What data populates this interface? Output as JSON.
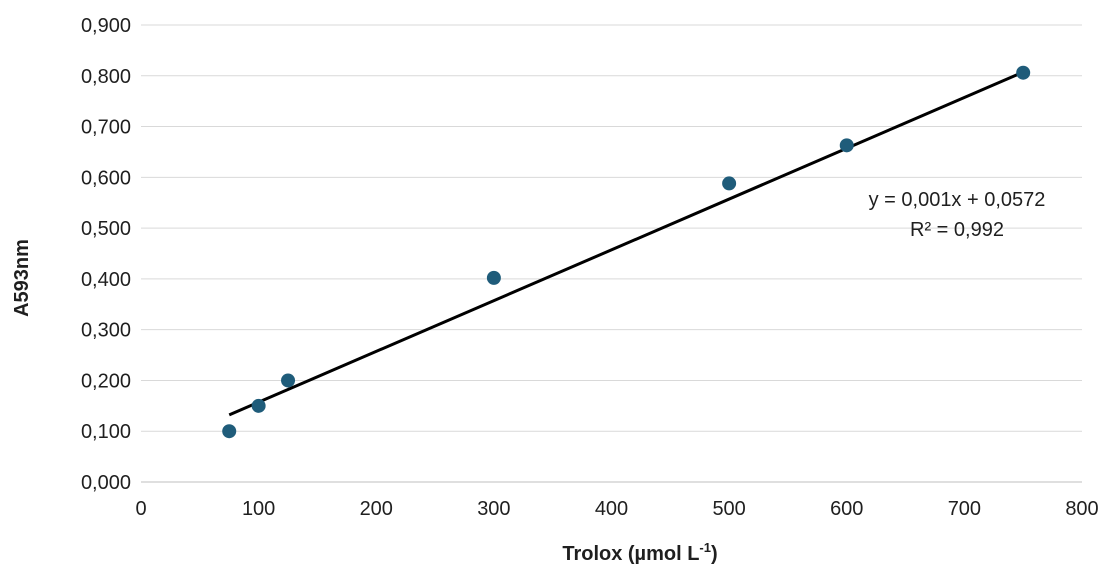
{
  "chart_data": {
    "type": "scatter",
    "xlabel": "Trolox (µmol L",
    "xlabel_superscript": "-1",
    "xlabel_suffix": ")",
    "ylabel": "A593nm",
    "xlim": [
      0,
      800
    ],
    "ylim": [
      0,
      0.9
    ],
    "x_ticks": [
      "0",
      "100",
      "200",
      "300",
      "400",
      "500",
      "600",
      "700",
      "800"
    ],
    "y_ticks": [
      "0,000",
      "0,100",
      "0,200",
      "0,300",
      "0,400",
      "0,500",
      "0,600",
      "0,700",
      "0,800",
      "0,900"
    ],
    "grid": "horizontal",
    "series": [
      {
        "color": "#1f5c7a",
        "points": [
          {
            "x": 75,
            "y": 0.1
          },
          {
            "x": 100,
            "y": 0.15
          },
          {
            "x": 125,
            "y": 0.2
          },
          {
            "x": 300,
            "y": 0.402
          },
          {
            "x": 500,
            "y": 0.588
          },
          {
            "x": 600,
            "y": 0.663
          },
          {
            "x": 750,
            "y": 0.806
          }
        ]
      }
    ],
    "trendline": {
      "type": "linear",
      "slope": 0.001,
      "intercept": 0.0572,
      "x_range": [
        75,
        750
      ],
      "color": "#000000",
      "equation": "y = 0,001x + 0,0572",
      "r_squared": "R² = 0,992"
    }
  }
}
